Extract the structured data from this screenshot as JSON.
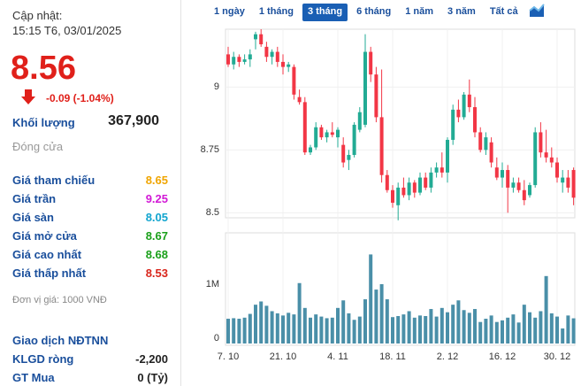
{
  "sidebar": {
    "updated_label": "Cập nhật:",
    "updated_time": "15:15 T6, 03/01/2025",
    "price": "8.56",
    "change": "-0.09 (-1.04%)",
    "volume_label": "Khối lượng",
    "volume": "367,900",
    "status": "Đóng cửa",
    "rows": [
      {
        "label": "Giá tham chiếu",
        "value": "8.65",
        "color": "#f0a500"
      },
      {
        "label": "Giá trần",
        "value": "9.25",
        "color": "#d219d6"
      },
      {
        "label": "Giá sàn",
        "value": "8.05",
        "color": "#12a5cf"
      },
      {
        "label": "Giá mở cửa",
        "value": "8.67",
        "color": "#1aa01a"
      },
      {
        "label": "Giá cao nhất",
        "value": "8.68",
        "color": "#1aa01a"
      },
      {
        "label": "Giá thấp nhất",
        "value": "8.53",
        "color": "#d9261c"
      }
    ],
    "unit": "Đơn vị giá: 1000 VNĐ",
    "foreign_title": "Giao dịch NĐTNN",
    "foreign_rows": [
      {
        "label": "KLGD ròng",
        "value": "-2,200"
      },
      {
        "label": "GT Mua",
        "value": "0 (Tỷ)"
      }
    ]
  },
  "tabs": [
    "1 ngày",
    "1 tháng",
    "3 tháng",
    "6 tháng",
    "1 năm",
    "3 năm",
    "Tất cả"
  ],
  "active_tab": 2,
  "chart_data": [
    {
      "type": "candlestick",
      "up_color": "#22ab94",
      "down_color": "#f23645",
      "ylim": [
        8.48,
        9.23
      ],
      "yticks": [
        8.5,
        8.75,
        9
      ],
      "grid": true,
      "open": [
        9.13,
        9.09,
        9.12,
        9.1,
        9.11,
        9.19,
        9.21,
        9.16,
        9.12,
        9.14,
        9.1,
        9.08,
        9.08,
        8.96,
        8.94,
        8.74,
        8.76,
        8.84,
        8.8,
        8.82,
        8.8,
        8.77,
        8.71,
        8.73,
        8.83,
        8.85,
        9.14,
        9.05,
        8.88,
        8.65,
        8.59,
        8.53,
        8.6,
        8.57,
        8.62,
        8.58,
        8.64,
        8.6,
        8.66,
        8.68,
        8.66,
        8.79,
        8.91,
        8.88,
        8.97,
        8.92,
        8.82,
        8.75,
        8.78,
        8.68,
        8.64,
        8.67,
        8.6,
        8.62,
        8.59,
        8.57,
        8.61,
        8.82,
        8.74,
        8.72,
        8.7,
        8.62,
        8.64,
        8.67
      ],
      "high": [
        9.16,
        9.14,
        9.13,
        9.13,
        9.15,
        9.22,
        9.23,
        9.18,
        9.15,
        9.16,
        9.13,
        9.1,
        9.09,
        8.99,
        8.96,
        8.77,
        8.86,
        8.85,
        8.83,
        8.86,
        8.84,
        8.8,
        8.75,
        8.86,
        8.92,
        9.21,
        9.16,
        9.08,
        9.07,
        8.67,
        8.61,
        8.62,
        8.64,
        8.64,
        8.63,
        8.66,
        8.66,
        8.68,
        8.7,
        8.74,
        8.8,
        8.93,
        8.95,
        8.98,
        9.03,
        8.96,
        8.84,
        8.82,
        8.8,
        8.72,
        8.7,
        8.69,
        8.64,
        8.64,
        8.63,
        8.62,
        8.84,
        8.86,
        8.83,
        8.76,
        8.72,
        8.67,
        8.67,
        8.68
      ],
      "low": [
        9.08,
        9.07,
        9.08,
        9.09,
        9.08,
        9.15,
        9.16,
        9.1,
        9.09,
        9.08,
        9.05,
        9.06,
        8.95,
        8.93,
        8.73,
        8.73,
        8.75,
        8.79,
        8.78,
        8.8,
        8.76,
        8.68,
        8.67,
        8.72,
        8.82,
        8.84,
        9.02,
        8.86,
        8.62,
        8.58,
        8.52,
        8.47,
        8.56,
        8.55,
        8.56,
        8.57,
        8.59,
        8.58,
        8.64,
        8.64,
        8.62,
        8.77,
        8.86,
        8.87,
        8.9,
        8.8,
        8.74,
        8.73,
        8.68,
        8.63,
        8.6,
        8.5,
        8.58,
        8.58,
        8.53,
        8.56,
        8.6,
        8.72,
        8.7,
        8.68,
        8.62,
        8.58,
        8.58,
        8.53
      ],
      "close": [
        9.09,
        9.12,
        9.1,
        9.11,
        9.13,
        9.21,
        9.17,
        9.12,
        9.14,
        9.1,
        9.08,
        9.09,
        8.97,
        8.94,
        8.74,
        8.76,
        8.84,
        8.8,
        8.82,
        8.81,
        8.83,
        8.7,
        8.73,
        8.85,
        8.9,
        9.14,
        9.05,
        8.88,
        8.65,
        8.59,
        8.54,
        8.6,
        8.57,
        8.62,
        8.58,
        8.64,
        8.6,
        8.66,
        8.68,
        8.66,
        8.79,
        8.91,
        8.88,
        8.97,
        8.92,
        8.82,
        8.75,
        8.8,
        8.7,
        8.64,
        8.67,
        8.6,
        8.62,
        8.59,
        8.55,
        8.61,
        8.82,
        8.74,
        8.72,
        8.7,
        8.64,
        8.64,
        8.6,
        8.56
      ]
    },
    {
      "type": "bar",
      "color": "#4a8fa8",
      "ylim": [
        0,
        1950000
      ],
      "yticks": [
        0,
        {
          "value": 1000000,
          "label": "1M"
        }
      ],
      "categories": [
        "7. 10",
        null,
        null,
        null,
        null,
        null,
        null,
        null,
        null,
        null,
        "21. 10",
        null,
        null,
        null,
        null,
        null,
        null,
        null,
        null,
        null,
        "4. 11",
        null,
        null,
        null,
        null,
        null,
        null,
        null,
        null,
        null,
        "18. 11",
        null,
        null,
        null,
        null,
        null,
        null,
        null,
        null,
        null,
        "2. 12",
        null,
        null,
        null,
        null,
        null,
        null,
        null,
        null,
        null,
        "16. 12",
        null,
        null,
        null,
        null,
        null,
        null,
        null,
        null,
        null,
        "30. 12",
        null,
        null,
        null
      ],
      "values": [
        360000,
        370000,
        360000,
        380000,
        450000,
        620000,
        680000,
        600000,
        500000,
        460000,
        420000,
        470000,
        440000,
        1020000,
        560000,
        380000,
        440000,
        400000,
        370000,
        380000,
        560000,
        700000,
        460000,
        340000,
        400000,
        720000,
        1550000,
        900000,
        1000000,
        720000,
        390000,
        410000,
        440000,
        500000,
        380000,
        420000,
        410000,
        540000,
        400000,
        560000,
        480000,
        620000,
        700000,
        520000,
        470000,
        540000,
        300000,
        360000,
        420000,
        300000,
        330000,
        380000,
        440000,
        290000,
        620000,
        480000,
        380000,
        500000,
        1150000,
        460000,
        400000,
        180000,
        420000,
        367900
      ]
    }
  ]
}
